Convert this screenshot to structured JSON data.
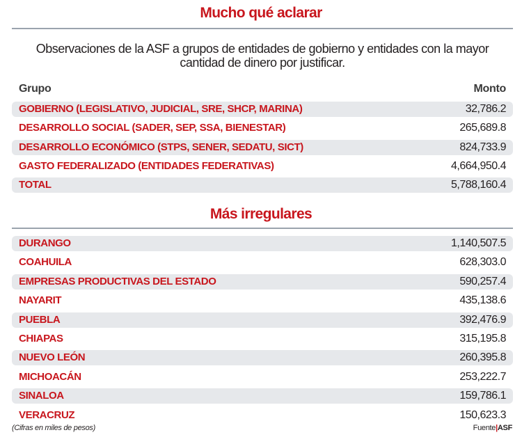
{
  "title": "Mucho qué aclarar",
  "subtitle": "Observaciones de la ASF a grupos de entidades de gobierno y entidades con la mayor cantidad de dinero por justificar.",
  "colors": {
    "accent": "#c8161d",
    "row_shade": "#e6e8eb",
    "rule": "#9aa3ad"
  },
  "chart_data": [
    {
      "type": "table",
      "columns": [
        "Grupo",
        "Monto"
      ],
      "rows": [
        {
          "label": "GOBIERNO (LEGISLATIVO, JUDICIAL, SRE, SHCP, MARINA)",
          "value": "32,786.2"
        },
        {
          "label": "DESARROLLO SOCIAL (SADER, SEP, SSA, BIENESTAR)",
          "value": "265,689.8"
        },
        {
          "label": "DESARROLLO ECONÓMICO (STPS, SENER, SEDATU, SICT)",
          "value": "824,733.9"
        },
        {
          "label": "GASTO FEDERALIZADO (ENTIDADES FEDERATIVAS)",
          "value": "4,664,950.4"
        },
        {
          "label": "TOTAL",
          "value": "5,788,160.4"
        }
      ]
    },
    {
      "type": "table",
      "title": "Más irregulares",
      "rows": [
        {
          "label": "DURANGO",
          "value": "1,140,507.5"
        },
        {
          "label": "COAHUILA",
          "value": "628,303.0"
        },
        {
          "label": "EMPRESAS PRODUCTIVAS DEL ESTADO",
          "value": "590,257.4"
        },
        {
          "label": "NAYARIT",
          "value": "435,138.6"
        },
        {
          "label": "PUEBLA",
          "value": "392,476.9"
        },
        {
          "label": "CHIAPAS",
          "value": "315,195.8"
        },
        {
          "label": "NUEVO LEÓN",
          "value": "260,395.8"
        },
        {
          "label": "MICHOACÁN",
          "value": "253,222.7"
        },
        {
          "label": "SINALOA",
          "value": "159,786.1"
        },
        {
          "label": "VERACRUZ",
          "value": "150,623.3"
        }
      ]
    }
  ],
  "footer": {
    "note": "(Cifras en miles de pesos)",
    "source_label": "Fuente",
    "source": "ASF"
  }
}
